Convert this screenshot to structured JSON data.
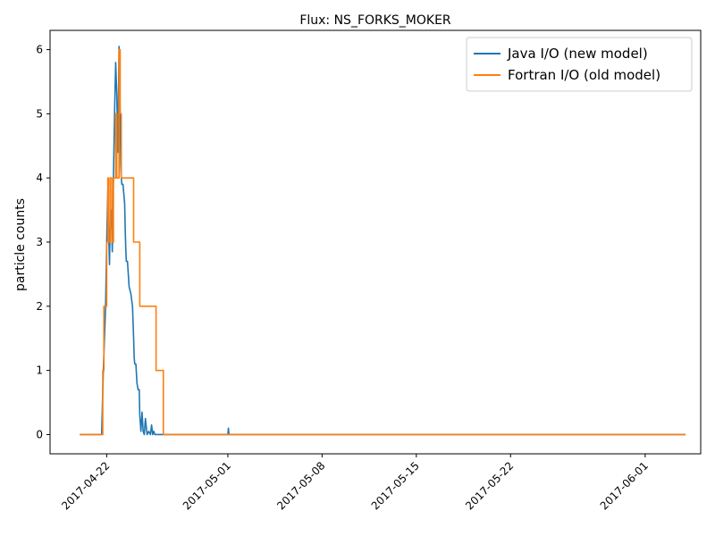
{
  "chart_data": {
    "type": "line",
    "title": "Flux: NS_FORKS_MOKER",
    "xlabel": "",
    "ylabel": "particle counts",
    "x_axis_type": "date",
    "xlim": [
      "2017-04-17T19:00",
      "2017-06-05T03:00"
    ],
    "ylim": [
      -0.3,
      6.3
    ],
    "xticks": [
      "2017-04-22",
      "2017-05-01",
      "2017-05-08",
      "2017-05-15",
      "2017-05-22",
      "2017-06-01"
    ],
    "yticks": [
      0,
      1,
      2,
      3,
      4,
      5,
      6
    ],
    "grid": false,
    "legend": {
      "placement": "top-right"
    },
    "series": [
      {
        "name": "Java I/O (new model)",
        "color": "#1f77b4",
        "x": [
          "2017-04-20T00:00",
          "2017-04-21T15:00",
          "2017-04-21T18:00",
          "2017-04-21T20:00",
          "2017-04-21T22:00",
          "2017-04-22T00:00",
          "2017-04-22T02:00",
          "2017-04-22T04:00",
          "2017-04-22T05:00",
          "2017-04-22T06:00",
          "2017-04-22T08:00",
          "2017-04-22T10:00",
          "2017-04-22T12:00",
          "2017-04-22T14:00",
          "2017-04-22T16:00",
          "2017-04-22T18:00",
          "2017-04-22T20:00",
          "2017-04-22T22:00",
          "2017-04-23T00:00",
          "2017-04-23T01:00",
          "2017-04-23T02:00",
          "2017-04-23T03:00",
          "2017-04-23T05:00",
          "2017-04-23T07:00",
          "2017-04-23T08:00",
          "2017-04-23T09:00",
          "2017-04-23T10:00",
          "2017-04-23T11:00",
          "2017-04-23T13:00",
          "2017-04-23T16:00",
          "2017-04-23T19:00",
          "2017-04-23T22:00",
          "2017-04-24T00:00",
          "2017-04-24T01:00",
          "2017-04-24T02:00",
          "2017-04-24T04:00",
          "2017-04-24T06:00",
          "2017-04-24T08:00",
          "2017-04-24T10:00",
          "2017-04-24T11:00",
          "2017-04-24T13:00",
          "2017-04-24T15:00",
          "2017-04-24T17:00",
          "2017-04-24T19:00",
          "2017-04-24T21:00",
          "2017-04-25T00:00",
          "2017-04-25T03:00",
          "2017-04-25T06:00",
          "2017-04-25T08:00",
          "2017-04-25T10:00",
          "2017-04-25T12:00",
          "2017-04-25T14:00",
          "2017-04-25T16:00",
          "2017-04-25T18:00",
          "2017-04-25T20:00",
          "2017-04-25T22:00",
          "2017-04-26T00:00",
          "2017-04-26T02:00",
          "2017-04-26T04:00",
          "2017-04-26T06:00",
          "2017-04-26T08:00",
          "2017-04-26T10:00",
          "2017-04-26T12:00",
          "2017-04-26T14:00",
          "2017-04-26T16:00",
          "2017-04-26T18:00",
          "2017-04-26T20:00",
          "2017-04-27T00:00",
          "2017-04-27T03:00",
          "2017-04-27T05:00",
          "2017-04-27T08:00",
          "2017-04-27T10:00",
          "2017-04-27T14:00",
          "2017-04-27T16:00",
          "2017-04-27T20:00",
          "2017-04-28T00:00",
          "2017-04-28T04:00",
          "2017-04-28T06:00",
          "2017-04-28T10:00",
          "2017-04-28T12:00",
          "2017-05-01T00:00",
          "2017-05-01T01:00",
          "2017-05-01T02:00",
          "2017-06-04T00:00"
        ],
        "y": [
          0,
          0,
          1.0,
          1.5,
          2.0,
          3.0,
          3.8,
          3.0,
          2.65,
          3.2,
          3.5,
          2.85,
          4.0,
          5.0,
          5.8,
          5.3,
          4.4,
          6.05,
          5.0,
          4.2,
          4.0,
          3.9,
          3.9,
          3.7,
          3.6,
          3.2,
          2.9,
          2.7,
          2.7,
          2.3,
          2.2,
          2.0,
          1.5,
          1.2,
          1.1,
          1.1,
          0.8,
          0.7,
          0.7,
          0.3,
          0.05,
          0.35,
          0.05,
          0.0,
          0.25,
          0.0,
          0.05,
          0.0,
          0.15,
          0.0,
          0.05,
          0.0,
          0.0,
          0.0,
          0.0,
          0.0,
          0.0,
          0.0,
          0.0,
          0.0,
          0.0,
          0.0,
          0.0,
          0.0,
          0.0,
          0.0,
          0.0,
          0.0,
          0.0,
          0.0,
          0.0,
          0.0,
          0.0,
          0.0,
          0.0,
          0.0,
          0.0,
          0.0,
          0.0,
          0.0,
          0.0,
          0.1,
          0.0,
          0.0
        ]
      },
      {
        "name": "Fortran I/O (old model)",
        "color": "#ff7f0e",
        "x": [
          "2017-04-20T00:00",
          "2017-04-21T14:00",
          "2017-04-21T15:00",
          "2017-04-21T17:00",
          "2017-04-21T19:00",
          "2017-04-22T00:00",
          "2017-04-22T02:00",
          "2017-04-22T03:00",
          "2017-04-22T06:00",
          "2017-04-22T09:00",
          "2017-04-22T12:00",
          "2017-04-22T16:00",
          "2017-04-22T18:00",
          "2017-04-22T22:00",
          "2017-04-23T00:00",
          "2017-04-23T02:00",
          "2017-04-23T04:00",
          "2017-04-24T00:00",
          "2017-04-24T08:00",
          "2017-04-24T11:00",
          "2017-04-25T00:00",
          "2017-04-25T04:00",
          "2017-04-25T16:00",
          "2017-04-26T00:00",
          "2017-04-26T03:00",
          "2017-04-26T05:00",
          "2017-04-27T00:00",
          "2017-04-27T03:00",
          "2017-04-27T06:00",
          "2017-06-04T00:00"
        ],
        "y": [
          0,
          0,
          0,
          1,
          2,
          3,
          4,
          3,
          4,
          3,
          4,
          5,
          4,
          6,
          5,
          4,
          4,
          3,
          3,
          2,
          2,
          2,
          1,
          1,
          1,
          0,
          0,
          0,
          0,
          0
        ],
        "step": "post"
      }
    ]
  }
}
